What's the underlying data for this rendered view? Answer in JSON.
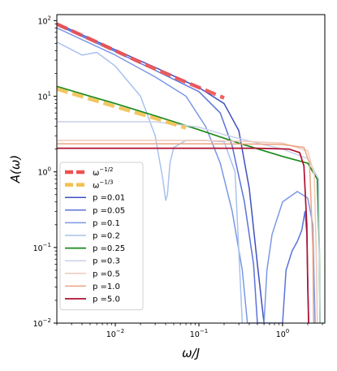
{
  "chart_data": {
    "type": "line",
    "title": "",
    "xlabel": "ω/J",
    "ylabel": "A(ω)",
    "x_scale": "log",
    "y_scale": "log",
    "xlim": [
      0.002,
      3.2
    ],
    "ylim": [
      0.01,
      120
    ],
    "grid": false,
    "legend_position": "lower-left",
    "x_ticks": [
      {
        "value": 0.01,
        "base": "10",
        "exp": "−2"
      },
      {
        "value": 0.1,
        "base": "10",
        "exp": "−1"
      },
      {
        "value": 1,
        "base": "10",
        "exp": "0"
      }
    ],
    "y_ticks": [
      {
        "value": 0.01,
        "base": "10",
        "exp": "−2"
      },
      {
        "value": 0.1,
        "base": "10",
        "exp": "−1"
      },
      {
        "value": 1,
        "base": "10",
        "exp": "0"
      },
      {
        "value": 10,
        "base": "10",
        "exp": "1"
      },
      {
        "value": 100,
        "base": "10",
        "exp": "2"
      }
    ],
    "reference_lines": [
      {
        "name": "ω^{-1/2}",
        "label_base": "ω",
        "label_exp": "−1/2",
        "color": "#f05050",
        "dashed": true,
        "width": 4.5,
        "points": [
          [
            0.002,
            90
          ],
          [
            0.006,
            52
          ],
          [
            0.02,
            28
          ],
          [
            0.06,
            16.5
          ],
          [
            0.2,
            9.5
          ]
        ]
      },
      {
        "name": "ω^{-1/3}",
        "label_base": "ω",
        "label_exp": "−1/3",
        "color": "#f2c050",
        "dashed": true,
        "width": 4.5,
        "points": [
          [
            0.002,
            12.5
          ],
          [
            0.005,
            9.2
          ],
          [
            0.01,
            7.3
          ],
          [
            0.03,
            5.1
          ],
          [
            0.07,
            3.8
          ]
        ]
      }
    ],
    "series": [
      {
        "name": "p =0.01",
        "color": "#3f4fc0",
        "width": 1.5,
        "points": [
          [
            0.002,
            92
          ],
          [
            0.005,
            58
          ],
          [
            0.01,
            41
          ],
          [
            0.03,
            24
          ],
          [
            0.1,
            13
          ],
          [
            0.2,
            8
          ],
          [
            0.3,
            3.5
          ],
          [
            0.4,
            0.6
          ],
          [
            0.5,
            0.06
          ],
          [
            0.6,
            0.01
          ]
        ]
      },
      {
        "name": "p =0.05",
        "color": "#5a73d8",
        "width": 1.5,
        "points": [
          [
            0.002,
            88
          ],
          [
            0.005,
            55
          ],
          [
            0.01,
            39
          ],
          [
            0.03,
            22
          ],
          [
            0.1,
            11.5
          ],
          [
            0.18,
            6
          ],
          [
            0.25,
            2.2
          ],
          [
            0.35,
            0.4
          ],
          [
            0.45,
            0.06
          ],
          [
            0.5,
            0.01
          ],
          [
            1.0,
            0.01
          ],
          [
            1.1,
            0.05
          ],
          [
            1.3,
            0.09
          ],
          [
            1.5,
            0.12
          ],
          [
            1.7,
            0.17
          ],
          [
            1.85,
            0.3
          ],
          [
            1.95,
            0.15
          ],
          [
            2.05,
            0.01
          ]
        ]
      },
      {
        "name": "p =0.1",
        "color": "#7b98e6",
        "width": 1.5,
        "points": [
          [
            0.002,
            80
          ],
          [
            0.005,
            50
          ],
          [
            0.01,
            35
          ],
          [
            0.03,
            18
          ],
          [
            0.07,
            10
          ],
          [
            0.12,
            4
          ],
          [
            0.18,
            1.3
          ],
          [
            0.25,
            0.3
          ],
          [
            0.33,
            0.05
          ],
          [
            0.38,
            0.01
          ],
          [
            0.6,
            0.01
          ],
          [
            0.65,
            0.05
          ],
          [
            0.75,
            0.15
          ],
          [
            1.0,
            0.4
          ],
          [
            1.5,
            0.55
          ],
          [
            2.0,
            0.45
          ],
          [
            2.3,
            0.2
          ],
          [
            2.45,
            0.01
          ]
        ]
      },
      {
        "name": "p =0.2",
        "color": "#a9c2ee",
        "width": 1.5,
        "points": [
          [
            0.002,
            52
          ],
          [
            0.004,
            35
          ],
          [
            0.006,
            38
          ],
          [
            0.01,
            25
          ],
          [
            0.02,
            10
          ],
          [
            0.03,
            3
          ],
          [
            0.037,
            0.8
          ],
          [
            0.04,
            0.42
          ],
          [
            0.042,
            0.5
          ],
          [
            0.045,
            1.3
          ],
          [
            0.05,
            2.1
          ],
          [
            0.07,
            2.6
          ],
          [
            0.12,
            2.6
          ],
          [
            0.2,
            2.5
          ],
          [
            0.27,
            1.0
          ],
          [
            0.33,
            0.01
          ]
        ]
      },
      {
        "name": "p =0.25",
        "color": "#1a8a1a",
        "width": 1.7,
        "points": [
          [
            0.002,
            13.5
          ],
          [
            0.005,
            10
          ],
          [
            0.01,
            8
          ],
          [
            0.03,
            5.5
          ],
          [
            0.1,
            3.6
          ],
          [
            0.3,
            2.4
          ],
          [
            1.0,
            1.6
          ],
          [
            2.0,
            1.3
          ],
          [
            2.6,
            0.8
          ],
          [
            2.75,
            0.1
          ],
          [
            2.8,
            0.01
          ]
        ]
      },
      {
        "name": "p =0.3",
        "color": "#c8d0e8",
        "width": 1.5,
        "points": [
          [
            0.002,
            4.6
          ],
          [
            0.03,
            4.6
          ],
          [
            0.1,
            3.9
          ],
          [
            0.2,
            3.1
          ],
          [
            0.5,
            2.4
          ],
          [
            1.0,
            2.0
          ],
          [
            2.0,
            1.5
          ],
          [
            2.7,
            0.8
          ],
          [
            2.8,
            0.01
          ]
        ]
      },
      {
        "name": "p =0.5",
        "color": "#f0c9b8",
        "width": 1.5,
        "points": [
          [
            0.002,
            2.6
          ],
          [
            0.1,
            2.6
          ],
          [
            0.3,
            2.55
          ],
          [
            1.0,
            2.4
          ],
          [
            2.0,
            1.9
          ],
          [
            2.4,
            0.9
          ],
          [
            2.55,
            0.05
          ],
          [
            2.6,
            0.01
          ]
        ]
      },
      {
        "name": "p =1.0",
        "color": "#eca482",
        "width": 1.5,
        "points": [
          [
            0.002,
            2.35
          ],
          [
            0.1,
            2.35
          ],
          [
            0.5,
            2.33
          ],
          [
            1.0,
            2.3
          ],
          [
            1.8,
            2.1
          ],
          [
            2.1,
            1.3
          ],
          [
            2.3,
            0.1
          ],
          [
            2.35,
            0.01
          ]
        ]
      },
      {
        "name": "p =5.0",
        "color": "#b01030",
        "width": 1.7,
        "points": [
          [
            0.002,
            2.05
          ],
          [
            0.5,
            2.05
          ],
          [
            1.2,
            2.0
          ],
          [
            1.6,
            1.8
          ],
          [
            1.8,
            1.2
          ],
          [
            1.95,
            0.2
          ],
          [
            2.0,
            0.03
          ],
          [
            2.05,
            0.01
          ]
        ]
      }
    ]
  }
}
